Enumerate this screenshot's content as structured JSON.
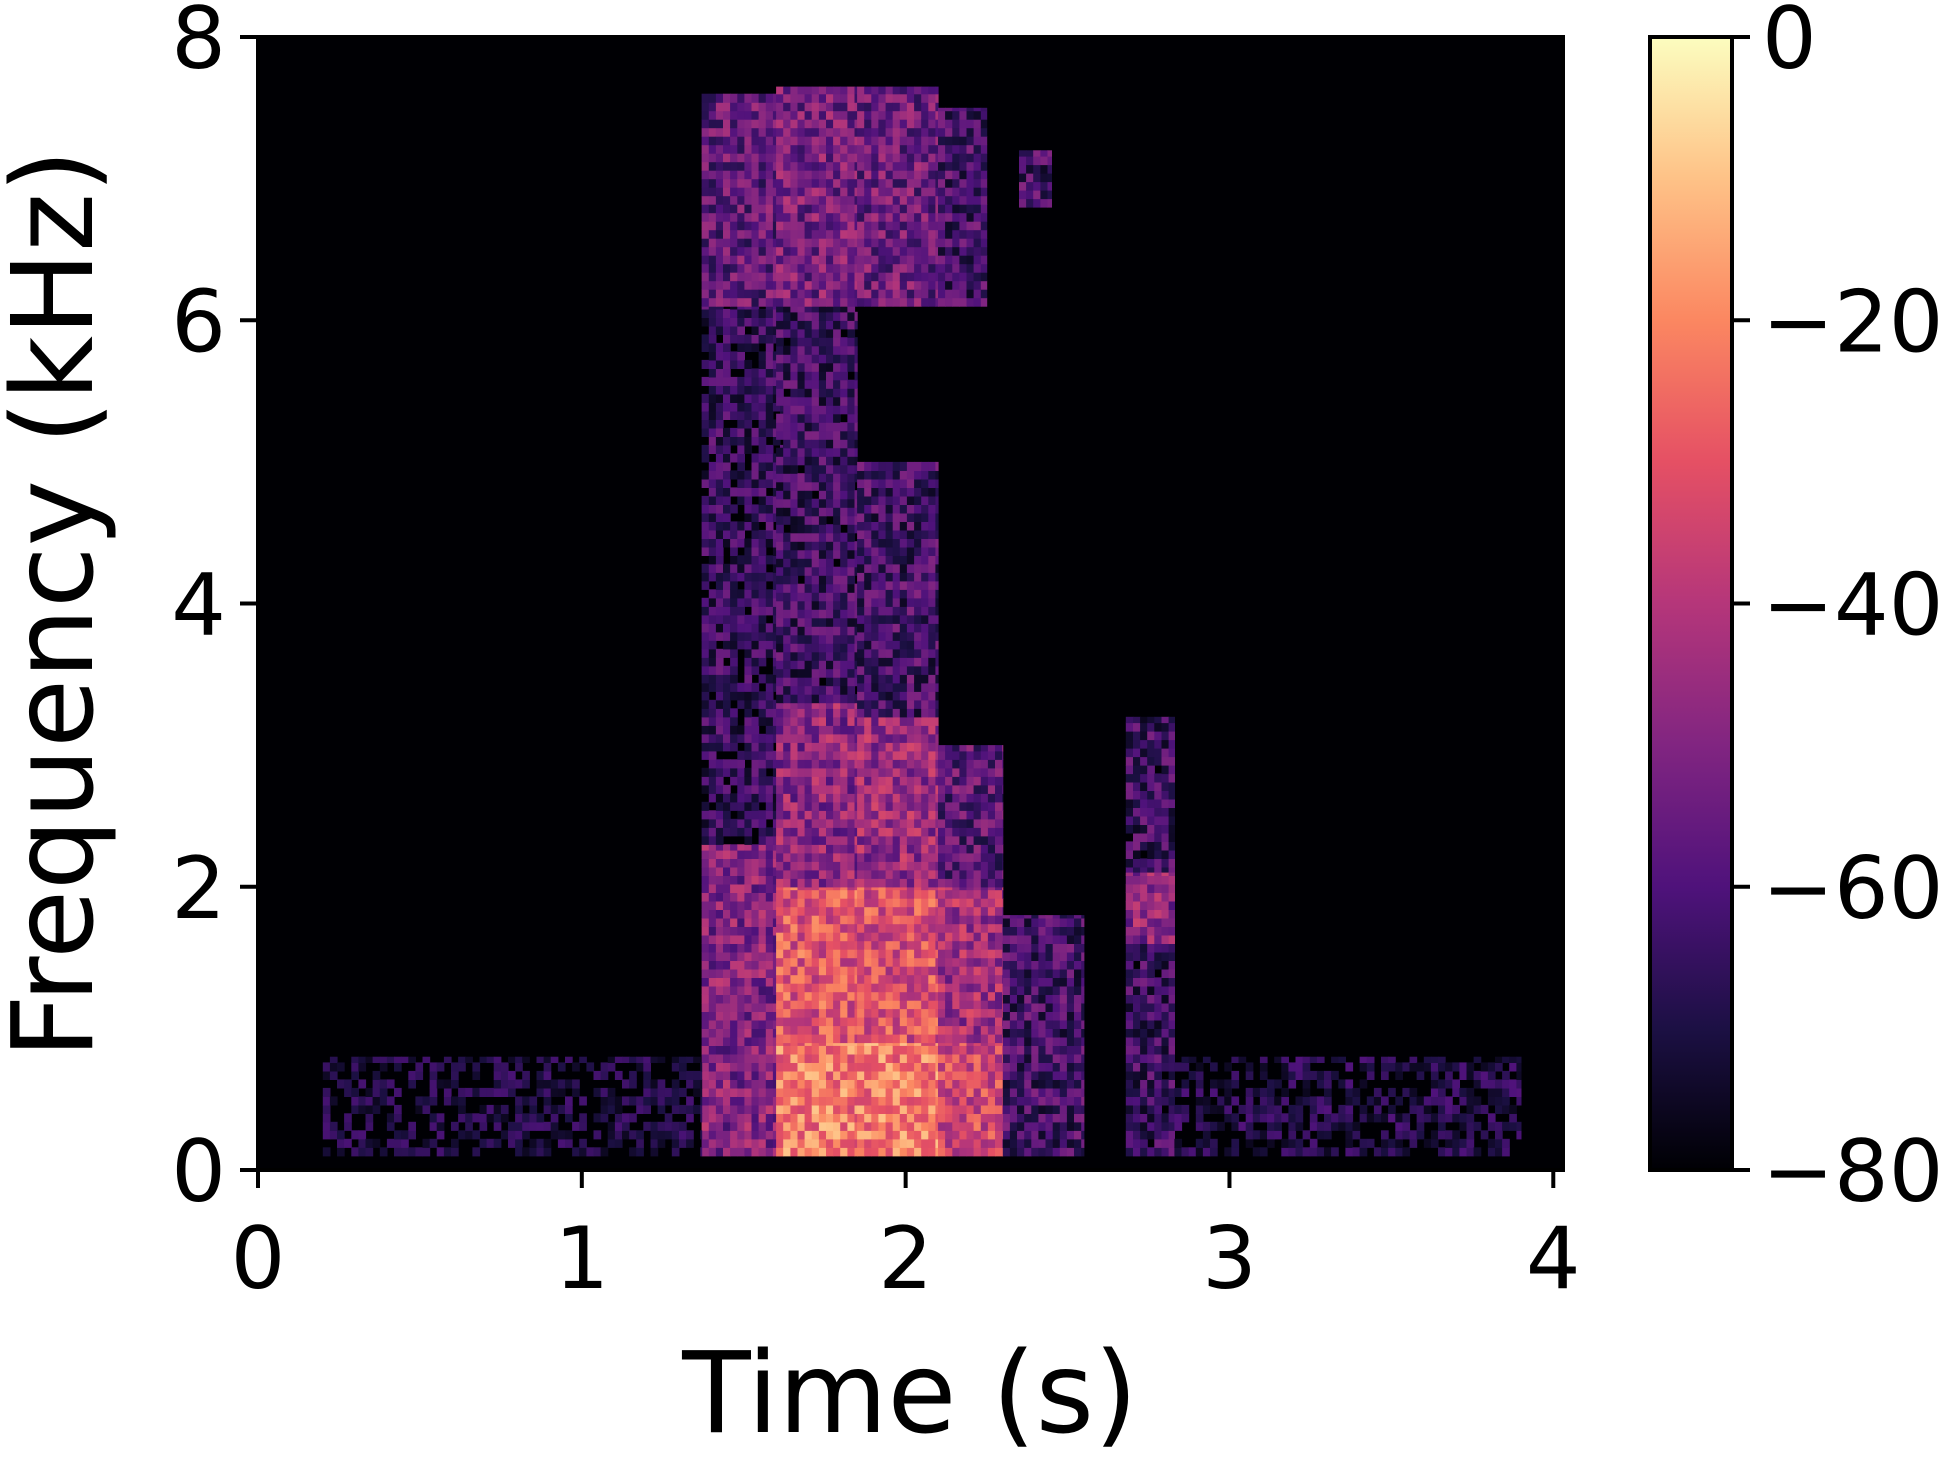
{
  "chart_data": {
    "type": "heatmap",
    "title": "",
    "xlabel": "Time (s)",
    "ylabel": "Frequency (kHz)",
    "xlim": [
      0,
      4.03
    ],
    "ylim": [
      0,
      8
    ],
    "x_ticks": [
      0,
      1,
      2,
      3,
      4
    ],
    "x_tick_labels": [
      "0",
      "1",
      "2",
      "3",
      "4"
    ],
    "y_ticks": [
      0,
      2,
      4,
      6,
      8
    ],
    "y_tick_labels": [
      "0",
      "2",
      "4",
      "6",
      "8"
    ],
    "colormap": "magma",
    "colorbar": {
      "range": [
        -80,
        0
      ],
      "ticks": [
        0,
        -20,
        -40,
        -60,
        -80
      ],
      "tick_labels": [
        "0",
        "−20",
        "−40",
        "−60",
        "−80"
      ],
      "colors": [
        "#000004",
        "#1c1044",
        "#4f127b",
        "#812581",
        "#b5367a",
        "#e55064",
        "#fb8761",
        "#fec287",
        "#fcfdbf"
      ]
    },
    "energy_regions": [
      {
        "t": [
          1.37,
          1.62
        ],
        "f": [
          0.1,
          2.3
        ],
        "db": -50
      },
      {
        "t": [
          1.37,
          1.62
        ],
        "f": [
          2.3,
          6.1
        ],
        "db": -66
      },
      {
        "t": [
          1.37,
          1.62
        ],
        "f": [
          6.1,
          7.6
        ],
        "db": -56
      },
      {
        "t": [
          1.6,
          1.85
        ],
        "f": [
          0.1,
          0.9
        ],
        "db": -22
      },
      {
        "t": [
          1.6,
          1.85
        ],
        "f": [
          0.9,
          2.0
        ],
        "db": -30
      },
      {
        "t": [
          1.6,
          1.85
        ],
        "f": [
          2.0,
          3.3
        ],
        "db": -48
      },
      {
        "t": [
          1.6,
          1.85
        ],
        "f": [
          3.3,
          6.1
        ],
        "db": -64
      },
      {
        "t": [
          1.6,
          1.85
        ],
        "f": [
          6.1,
          7.65
        ],
        "db": -52
      },
      {
        "t": [
          1.85,
          2.1
        ],
        "f": [
          0.1,
          0.9
        ],
        "db": -22
      },
      {
        "t": [
          1.85,
          2.1
        ],
        "f": [
          0.9,
          2.0
        ],
        "db": -32
      },
      {
        "t": [
          1.85,
          2.1
        ],
        "f": [
          2.0,
          3.2
        ],
        "db": -46
      },
      {
        "t": [
          1.85,
          2.1
        ],
        "f": [
          3.2,
          5.0
        ],
        "db": -62
      },
      {
        "t": [
          1.85,
          2.1
        ],
        "f": [
          6.1,
          7.65
        ],
        "db": -54
      },
      {
        "t": [
          2.1,
          2.3
        ],
        "f": [
          0.1,
          0.9
        ],
        "db": -34
      },
      {
        "t": [
          2.1,
          2.3
        ],
        "f": [
          0.9,
          2.0
        ],
        "db": -44
      },
      {
        "t": [
          2.1,
          2.3
        ],
        "f": [
          2.0,
          3.0
        ],
        "db": -58
      },
      {
        "t": [
          2.1,
          2.25
        ],
        "f": [
          6.1,
          7.5
        ],
        "db": -62
      },
      {
        "t": [
          2.3,
          2.55
        ],
        "f": [
          0.1,
          1.8
        ],
        "db": -62
      },
      {
        "t": [
          2.35,
          2.45
        ],
        "f": [
          6.8,
          7.2
        ],
        "db": -62
      },
      {
        "t": [
          2.68,
          2.83
        ],
        "f": [
          0.1,
          3.2
        ],
        "db": -64
      },
      {
        "t": [
          2.68,
          2.83
        ],
        "f": [
          1.6,
          2.1
        ],
        "db": -48
      },
      {
        "t": [
          0.2,
          1.37
        ],
        "f": [
          0.1,
          0.8
        ],
        "db": -74
      },
      {
        "t": [
          2.83,
          3.9
        ],
        "f": [
          0.1,
          0.8
        ],
        "db": -72
      }
    ]
  }
}
